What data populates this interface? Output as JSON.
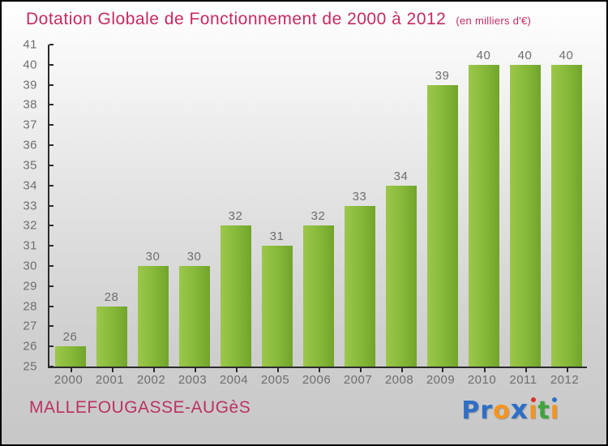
{
  "header": {
    "title": "Dotation Globale de Fonctionnement de 2000 à 2012",
    "subtitle": "(en milliers d'€)"
  },
  "chart_data": {
    "type": "bar",
    "title": "Dotation Globale de Fonctionnement de 2000 à 2012",
    "subtitle": "(en milliers d'€)",
    "categories": [
      "2000",
      "2001",
      "2002",
      "2003",
      "2004",
      "2005",
      "2006",
      "2007",
      "2008",
      "2009",
      "2010",
      "2011",
      "2012"
    ],
    "values": [
      26,
      28,
      30,
      30,
      32,
      31,
      32,
      33,
      34,
      39,
      40,
      40,
      40
    ],
    "xlabel": "",
    "ylabel": "",
    "ylim": [
      25,
      41
    ],
    "ytick_step": 1,
    "grid": false,
    "legend_position": "none",
    "value_labels_shown": true
  },
  "footer": {
    "commune": "MALLEFOUGASSE-AUGèS",
    "logo_letters": [
      {
        "char": "P",
        "color": "#2e6fc6"
      },
      {
        "char": "r",
        "color": "#2e6fc6"
      },
      {
        "char": "o",
        "color": "#f7941d"
      },
      {
        "char": "x",
        "color": "#2e6fc6",
        "bold": true
      },
      {
        "char": "i",
        "color": "#f7941d",
        "dot": "#d93025"
      },
      {
        "char": "t",
        "color": "#3fa43c"
      },
      {
        "char": "i",
        "color": "#f7941d",
        "dot": "#2e6fc6"
      }
    ]
  },
  "colors": {
    "title_pink": "#c62a60",
    "commune_pink": "#bc3165",
    "bar_light": "#9cc74a",
    "bar_mid": "#85b838",
    "bar_dark": "#71a42b",
    "axis": "#2b2b2b",
    "label_gray": "#6e6e6e",
    "bg_top": "#ffffff",
    "bg_bottom": "#c7c7c7"
  }
}
